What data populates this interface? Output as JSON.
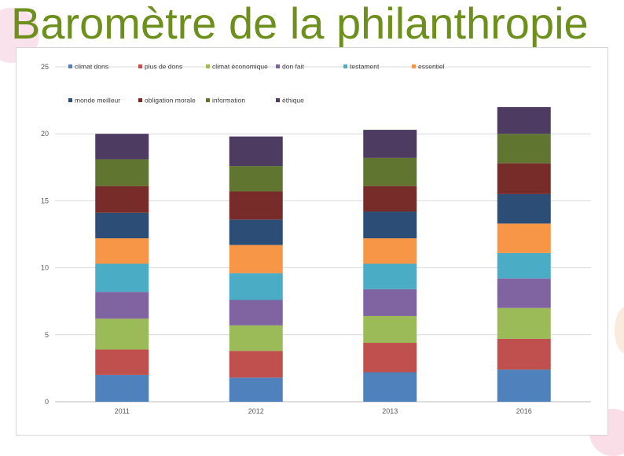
{
  "title": "Baromètre de la philanthropie",
  "chart_data": {
    "type": "bar",
    "stacked": true,
    "categories": [
      "2011",
      "2012",
      "2013",
      "2016"
    ],
    "ylim": [
      0,
      25
    ],
    "yticks": [
      "0",
      "5",
      "10",
      "15",
      "20",
      "25"
    ],
    "grid": true,
    "legend_position": "top-left",
    "series": [
      {
        "name": "climat dons",
        "color": "#4f81bd",
        "values": [
          2.0,
          1.8,
          2.2,
          2.4
        ]
      },
      {
        "name": "plus de dons",
        "color": "#c0504d",
        "values": [
          1.9,
          2.0,
          2.2,
          2.3
        ]
      },
      {
        "name": "climat économique",
        "color": "#9bbb59",
        "values": [
          2.3,
          1.9,
          2.0,
          2.3
        ]
      },
      {
        "name": "don fait",
        "color": "#8064a2",
        "values": [
          2.0,
          1.9,
          2.0,
          2.2
        ]
      },
      {
        "name": "testament",
        "color": "#4bacc6",
        "values": [
          2.1,
          2.0,
          1.9,
          1.9
        ]
      },
      {
        "name": "essentiel",
        "color": "#f79646",
        "values": [
          1.9,
          2.1,
          1.9,
          2.2
        ]
      },
      {
        "name": "monde meilleur",
        "color": "#2c4d75",
        "values": [
          1.9,
          1.9,
          2.0,
          2.2
        ]
      },
      {
        "name": "obligation morale",
        "color": "#772c2a",
        "values": [
          2.0,
          2.1,
          1.9,
          2.3
        ]
      },
      {
        "name": "information",
        "color": "#5f7530",
        "values": [
          2.0,
          1.9,
          2.1,
          2.2
        ]
      },
      {
        "name": "éthique",
        "color": "#4d3b62",
        "values": [
          1.9,
          2.2,
          2.1,
          2.0
        ]
      }
    ]
  }
}
